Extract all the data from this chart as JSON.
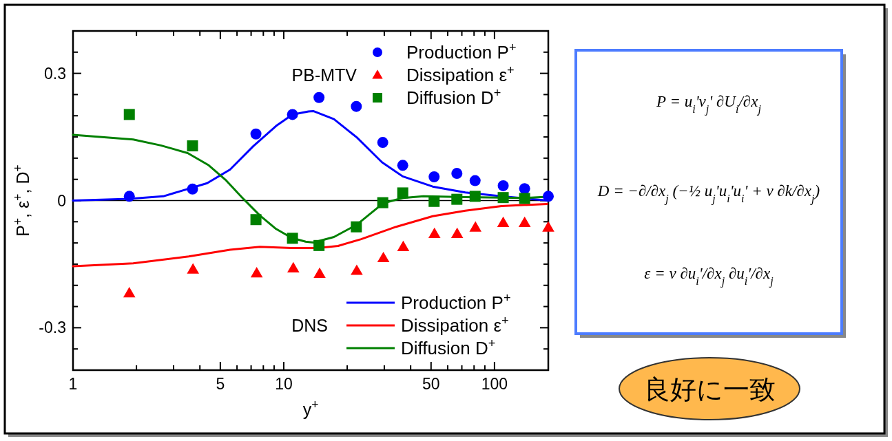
{
  "chart_data": {
    "type": "scatter",
    "xlabel": "y$^{+}$",
    "ylabel": "P$^{+}$, ε$^{+}$, D$^{+}$",
    "log": "x",
    "grid": false,
    "legend": "top right",
    "xlim": [
      1,
      180
    ],
    "ylim": [
      -0.4,
      0.4
    ],
    "xticks": [
      1,
      {
        "value": 2,
        "label": null
      },
      {
        "value": 3,
        "label": null
      },
      {
        "value": 4,
        "label": null
      },
      5,
      {
        "value": 6,
        "label": null
      },
      {
        "value": 7,
        "label": null
      },
      {
        "value": 8,
        "label": null
      },
      {
        "value": 9,
        "label": null
      },
      10,
      {
        "value": 20,
        "label": null
      },
      {
        "value": 30,
        "label": null
      },
      {
        "value": 40,
        "label": null
      },
      50,
      {
        "value": 60,
        "label": null
      },
      {
        "value": 70,
        "label": null
      },
      {
        "value": 80,
        "label": null
      },
      {
        "value": 90,
        "label": null
      },
      100
    ],
    "yticks": [
      {
        "value": -0.35,
        "label": null
      },
      -0.3,
      {
        "value": -0.25,
        "label": null
      },
      {
        "value": -0.2,
        "label": null
      },
      {
        "value": -0.15,
        "label": null
      },
      {
        "value": -0.1,
        "label": null
      },
      {
        "value": -0.05,
        "label": null
      },
      0,
      {
        "value": 0.05,
        "label": null
      },
      {
        "value": 0.1,
        "label": null
      },
      {
        "value": 0.15,
        "label": null
      },
      {
        "value": 0.2,
        "label": null
      },
      {
        "value": 0.25,
        "label": null
      },
      0.3,
      {
        "value": 0.35,
        "label": null
      }
    ],
    "ref_lines": [
      {
        "axis": "y",
        "value": 0,
        "color": "#000000"
      }
    ],
    "series": [
      {
        "name": "Production P$^{+}$",
        "marker": "circle",
        "color": "#0000ff",
        "x": [
          1.85,
          3.69,
          7.38,
          11.0,
          14.7,
          22.1,
          29.5,
          36.7,
          51.7,
          66.3,
          80.9,
          110,
          139,
          180
        ],
        "values": [
          0.01,
          0.027,
          0.157,
          0.203,
          0.243,
          0.222,
          0.137,
          0.083,
          0.056,
          0.064,
          0.047,
          0.035,
          0.028,
          0.01
        ]
      },
      {
        "name": "Dissipation ε$^{+}$",
        "marker": "triangle",
        "color": "#ff0000",
        "x": [
          1.85,
          3.71,
          7.44,
          11.1,
          14.8,
          22.2,
          29.7,
          36.9,
          51.9,
          66.5,
          81.2,
          110,
          139,
          180
        ],
        "values": [
          -0.218,
          -0.162,
          -0.171,
          -0.159,
          -0.172,
          -0.165,
          -0.135,
          -0.109,
          -0.078,
          -0.078,
          -0.063,
          -0.052,
          -0.052,
          -0.063
        ]
      },
      {
        "name": "Diffusion D$^{+}$",
        "marker": "square",
        "color": "#008000",
        "x": [
          1.85,
          3.69,
          7.38,
          11.0,
          14.7,
          22.1,
          29.5,
          36.7,
          51.7,
          66.3,
          80.9,
          110,
          139
        ],
        "values": [
          0.203,
          0.129,
          -0.045,
          -0.089,
          -0.106,
          -0.062,
          -0.005,
          0.018,
          -0.002,
          0.003,
          0.01,
          0.007,
          0.005
        ]
      },
      {
        "name": "Production P$^{+}$",
        "type": "line",
        "color": "#0000ff",
        "x": [
          1,
          1.85,
          2.68,
          4.33,
          5.56,
          7.16,
          9.2,
          11.0,
          13.1,
          13.8,
          17.3,
          22.2,
          29.3,
          36.7,
          50.9,
          72.7,
          108,
          180
        ],
        "values": [
          0,
          0.004,
          0.01,
          0.041,
          0.073,
          0.128,
          0.176,
          0.203,
          0.21,
          0.211,
          0.192,
          0.149,
          0.09,
          0.057,
          0.033,
          0.019,
          0.01,
          0
        ]
      },
      {
        "name": "Dissipation ε$^{+}$",
        "type": "line",
        "color": "#ff0000",
        "x": [
          1,
          1.93,
          3.54,
          5.56,
          7.7,
          10.9,
          14.5,
          18.1,
          23.3,
          34.1,
          50.9,
          72.7,
          108,
          178
        ],
        "values": [
          -0.155,
          -0.148,
          -0.132,
          -0.116,
          -0.109,
          -0.112,
          -0.112,
          -0.107,
          -0.091,
          -0.062,
          -0.037,
          -0.024,
          -0.013,
          -0.008
        ]
      },
      {
        "name": "Diffusion D$^{+}$",
        "type": "line",
        "color": "#008000",
        "x": [
          1,
          1.93,
          2.61,
          3.5,
          4.38,
          5.29,
          6.46,
          7.7,
          9.2,
          10.9,
          12.7,
          13.8,
          17.3,
          22.2,
          29.7,
          36.7,
          46,
          72.7,
          108,
          139,
          178
        ],
        "values": [
          0.155,
          0.144,
          0.13,
          0.112,
          0.084,
          0.049,
          0.003,
          -0.035,
          -0.067,
          -0.088,
          -0.097,
          -0.099,
          -0.086,
          -0.057,
          -0.006,
          0.006,
          0.01,
          0.008,
          0.007,
          0.006,
          0.009
        ]
      }
    ],
    "annotations": [
      "PB-MTV",
      "DNS",
      "P = u$_{i}$'v$_{j}$' ∂U$_{i}$/∂x$_{j}$",
      "D = −∂/∂x$_{j}$ (−½ u$_{j}$'u$_{i}$'u$_{i}$' + ν ∂k/∂x$_{j}$)",
      "ε = ν ∂u$_{i}$'/∂x$_{j}$ ∂u$_{i}$'/∂x$_{j}$",
      "良好に一致"
    ]
  }
}
